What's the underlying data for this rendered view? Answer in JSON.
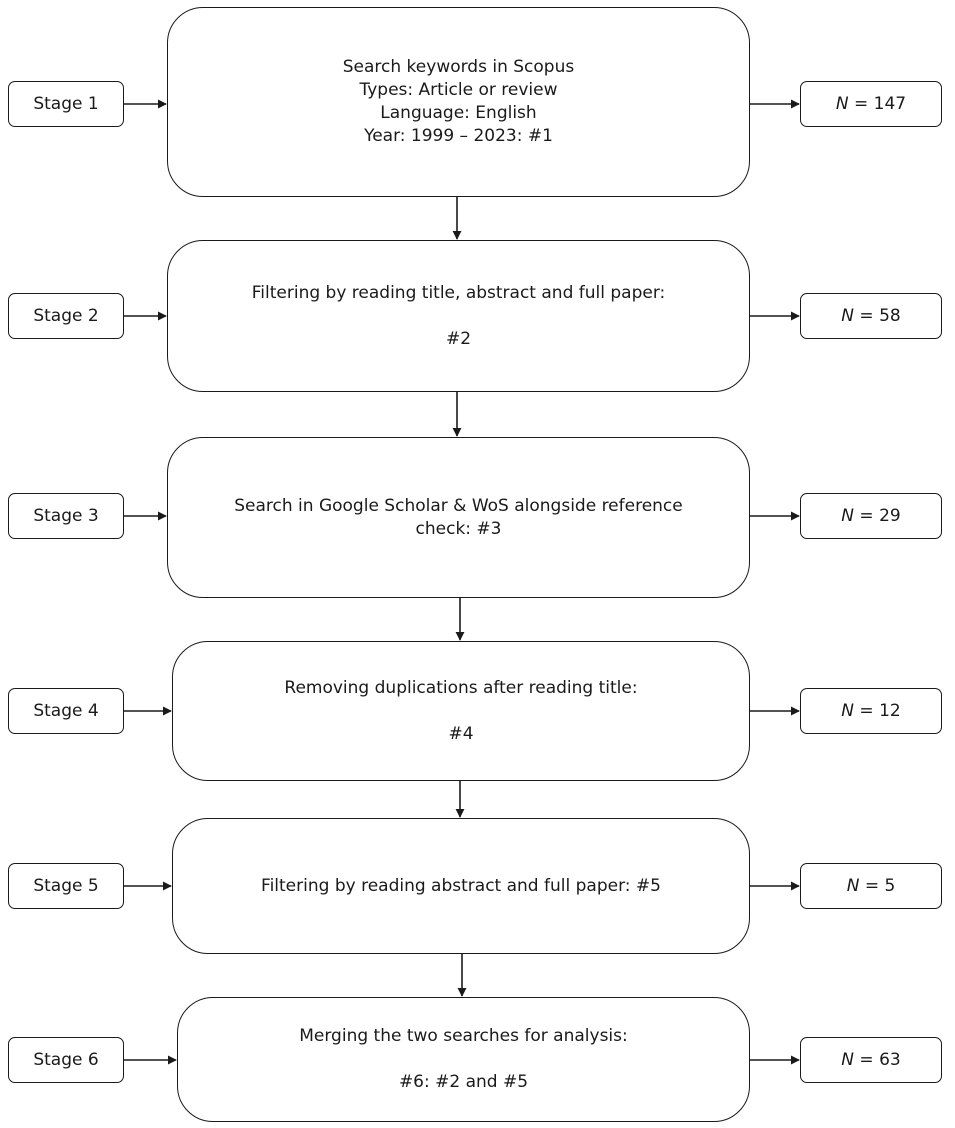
{
  "stages": [
    {
      "label": "Stage 1",
      "count_var": "N",
      "count_value": "= 147",
      "process_lines": [
        "Search keywords in Scopus",
        "Types: Article or review",
        "Language: English",
        "Year: 1999 – 2023: #1"
      ]
    },
    {
      "label": "Stage 2",
      "count_var": "N",
      "count_value": "= 58",
      "process_lines": [
        "Filtering by reading title, abstract and full paper:",
        "",
        "#2"
      ]
    },
    {
      "label": "Stage 3",
      "count_var": "N",
      "count_value": "= 29",
      "process_lines": [
        "Search in Google Scholar & WoS alongside reference",
        "check: #3"
      ]
    },
    {
      "label": "Stage 4",
      "count_var": "N",
      "count_value": "= 12",
      "process_lines": [
        "Removing duplications after reading title:",
        "",
        "#4"
      ]
    },
    {
      "label": "Stage 5",
      "count_var": "N",
      "count_value": "= 5",
      "process_lines": [
        "Filtering by reading abstract and full paper: #5"
      ]
    },
    {
      "label": "Stage 6",
      "count_var": "N",
      "count_value": "= 63",
      "process_lines": [
        "Merging the two searches for analysis:",
        "",
        "#6: #2 and #5"
      ]
    }
  ]
}
